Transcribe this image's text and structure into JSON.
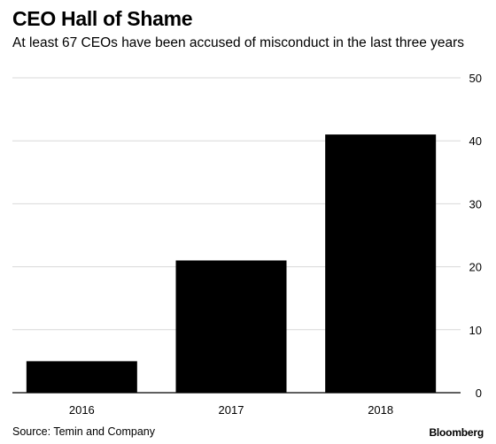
{
  "title": "CEO Hall of Shame",
  "subtitle": "At least 67 CEOs have been accused of misconduct in the last three years",
  "source": "Source: Temin and Company",
  "brand": "Bloomberg",
  "colors": {
    "bar": "#000000",
    "grid": "#d9d9d9",
    "axis": "#000000",
    "text": "#000000"
  },
  "chart_data": {
    "type": "bar",
    "categories": [
      "2016",
      "2017",
      "2018"
    ],
    "values": [
      5,
      21,
      41
    ],
    "title": "CEO Hall of Shame",
    "subtitle": "At least 67 CEOs have been accused of misconduct in the last three years",
    "xlabel": "",
    "ylabel": "",
    "ylim": [
      0,
      50
    ],
    "yticks": [
      "0",
      "10",
      "20",
      "30",
      "40",
      "50"
    ],
    "y_axis_side": "right",
    "grid": true,
    "legend": "none"
  }
}
